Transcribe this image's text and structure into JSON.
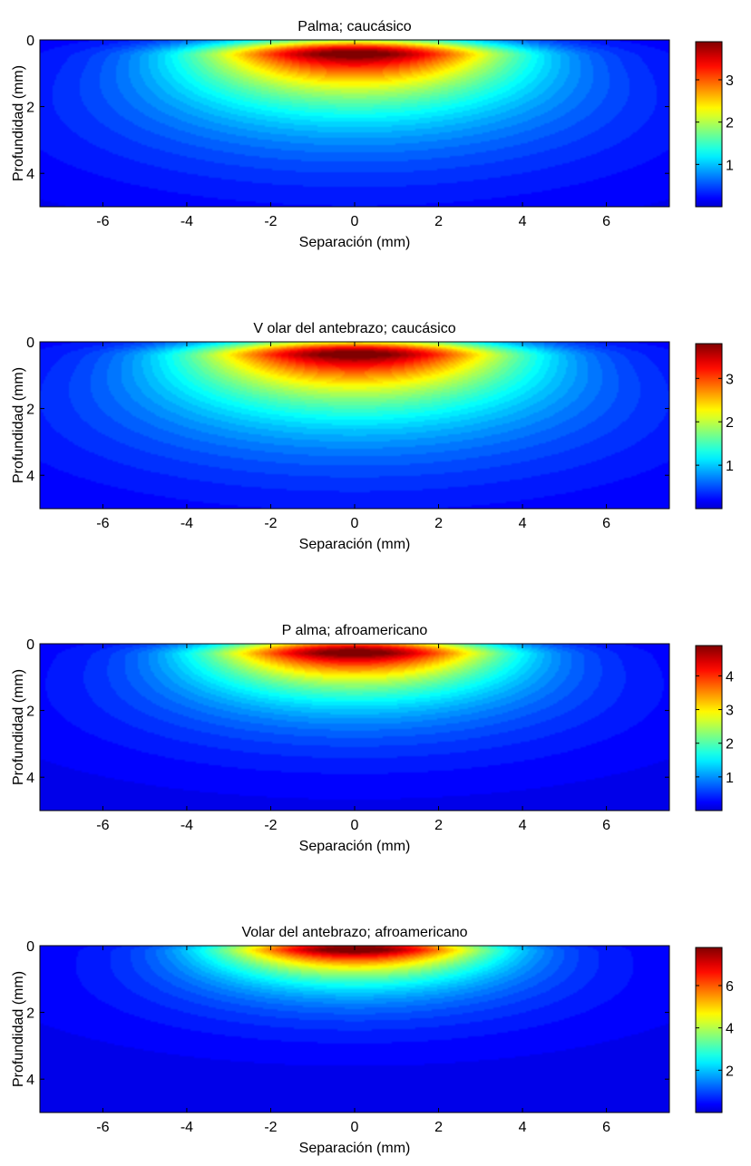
{
  "chart_data": [
    {
      "type": "heatmap",
      "title": "Palma; caucásico",
      "xlabel": "Separación (mm)",
      "ylabel": "Profundidad (mm)",
      "xlim": [
        -7.5,
        7.5
      ],
      "ylim": [
        0,
        5
      ],
      "y_reversed": true,
      "x_ticks": [
        -6,
        -4,
        -2,
        0,
        2,
        4,
        6
      ],
      "y_ticks": [
        0,
        2,
        4
      ],
      "colormap": "jet",
      "color_range": [
        0,
        3.9
      ],
      "colorbar_ticks": [
        1,
        2,
        3
      ],
      "peak": {
        "x": 0,
        "depth": 0.45,
        "value": 3.9
      },
      "spread": {
        "lateral_sigma_mm": 2.4,
        "depth_decay_mm": 1.5
      }
    },
    {
      "type": "heatmap",
      "title": "V olar del antebrazo; caucásico",
      "xlabel": "Separación (mm)",
      "ylabel": "Profundidad (mm)",
      "xlim": [
        -7.5,
        7.5
      ],
      "ylim": [
        0,
        5
      ],
      "y_reversed": true,
      "x_ticks": [
        -6,
        -4,
        -2,
        0,
        2,
        4,
        6
      ],
      "y_ticks": [
        0,
        2,
        4
      ],
      "colormap": "jet",
      "color_range": [
        0,
        3.8
      ],
      "colorbar_ticks": [
        1,
        2,
        3
      ],
      "peak": {
        "x": 0,
        "depth": 0.4,
        "value": 3.8
      },
      "spread": {
        "lateral_sigma_mm": 2.5,
        "depth_decay_mm": 1.55
      }
    },
    {
      "type": "heatmap",
      "title": "P alma; afroamericano",
      "xlabel": "Separación (mm)",
      "ylabel": "Profundidad (mm)",
      "xlim": [
        -7.5,
        7.5
      ],
      "ylim": [
        0,
        5
      ],
      "y_reversed": true,
      "x_ticks": [
        -6,
        -4,
        -2,
        0,
        2,
        4,
        6
      ],
      "y_ticks": [
        0,
        2,
        4
      ],
      "colormap": "jet",
      "color_range": [
        0,
        4.9
      ],
      "colorbar_ticks": [
        1,
        2,
        3,
        4
      ],
      "peak": {
        "x": 0,
        "depth": 0.3,
        "value": 4.9
      },
      "spread": {
        "lateral_sigma_mm": 2.3,
        "depth_decay_mm": 1.15
      }
    },
    {
      "type": "heatmap",
      "title": "Volar del antebrazo; afroamericano",
      "xlabel": "Separación (mm)",
      "ylabel": "Profundidad (mm)",
      "xlim": [
        -7.5,
        7.5
      ],
      "ylim": [
        0,
        5
      ],
      "y_reversed": true,
      "x_ticks": [
        -6,
        -4,
        -2,
        0,
        2,
        4,
        6
      ],
      "y_ticks": [
        0,
        2,
        4
      ],
      "colormap": "jet",
      "color_range": [
        0,
        7.8
      ],
      "colorbar_ticks": [
        2,
        4,
        6
      ],
      "peak": {
        "x": 0,
        "depth": 0.15,
        "value": 7.8
      },
      "spread": {
        "lateral_sigma_mm": 2.2,
        "depth_decay_mm": 0.85
      }
    }
  ]
}
